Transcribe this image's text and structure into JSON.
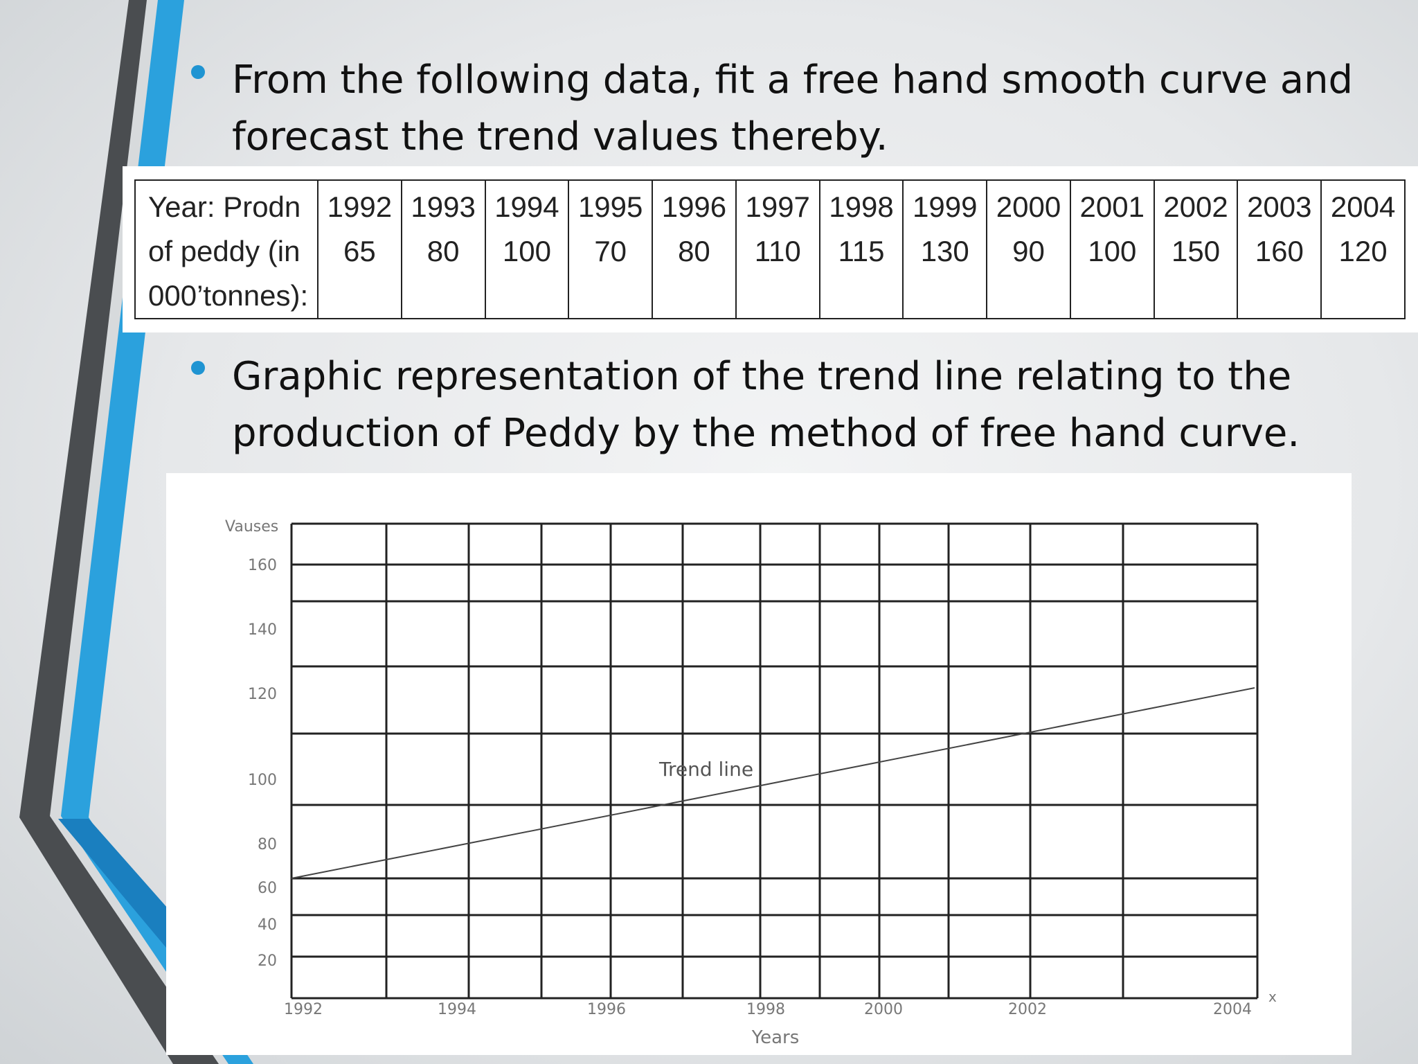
{
  "slide": {
    "bullet_1": "From the following data, fit a free hand smooth curve and forecast the trend values thereby.",
    "bullet_2": "Graphic representation of the trend line relating to the production of Peddy by the method of free hand curve."
  },
  "table": {
    "header_lines": [
      "Year: Prodn",
      "of peddy (in",
      "000’tonnes):"
    ],
    "years": [
      "1992",
      "1993",
      "1994",
      "1995",
      "1996",
      "1997",
      "1998",
      "1999",
      "2000",
      "2001",
      "2002",
      "2003",
      "2004"
    ],
    "production": [
      "65",
      "80",
      "100",
      "70",
      "80",
      "110",
      "115",
      "130",
      "90",
      "100",
      "150",
      "160",
      "120"
    ]
  },
  "chart_data": {
    "type": "line",
    "title": "",
    "xlabel": "Years",
    "ylabel": "Vauses",
    "x_tick_labels": [
      "1992",
      "1994",
      "1996",
      "1998",
      "2000",
      "2002",
      "2004"
    ],
    "x_axis_end_mark": "x",
    "y_tick_labels": [
      "160",
      "140",
      "120",
      "100",
      "80",
      "60",
      "40",
      "20"
    ],
    "grid": true,
    "series": [
      {
        "name": "Trend line",
        "x": [
          1992,
          2004
        ],
        "y": [
          65,
          123
        ]
      }
    ],
    "annotation": "Trend line",
    "colors": {
      "line": "#444444",
      "grid": "#222222",
      "ticks": "#777777"
    }
  },
  "theme": {
    "accent_blue": "#1f94d2",
    "dark_stripe": "#4a4d50"
  }
}
